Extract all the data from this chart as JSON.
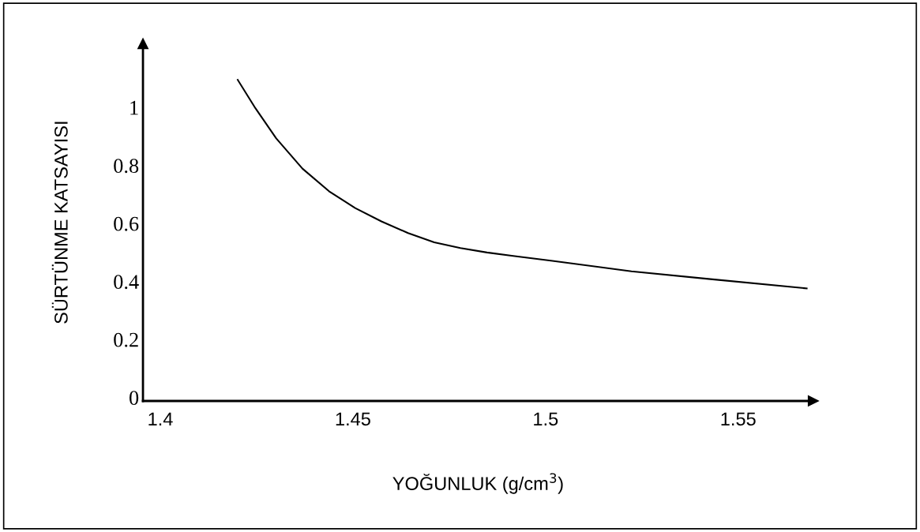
{
  "chart_data": {
    "type": "line",
    "xlabel": "YOĞUNLUK (g/cm$^{3}$)",
    "ylabel": "SÜRTÜNME KATSAYISI",
    "xlim": [
      1.3955,
      1.5695
    ],
    "ylim": [
      -0.012,
      1.22
    ],
    "xticks": [
      1.4,
      1.45,
      1.5,
      1.55
    ],
    "yticks": [
      0,
      0.2,
      0.4,
      0.6,
      0.8,
      1
    ],
    "series": [
      {
        "color": "#000000",
        "x": [
          1.4201,
          1.4247,
          1.4301,
          1.4369,
          1.4438,
          1.4506,
          1.4574,
          1.4643,
          1.4711,
          1.4779,
          1.4848,
          1.4916,
          1.5018,
          1.5223,
          1.5428,
          1.5678
        ],
        "values": [
          1.095,
          0.997,
          0.893,
          0.789,
          0.711,
          0.653,
          0.607,
          0.567,
          0.535,
          0.515,
          0.5,
          0.488,
          0.471,
          0.435,
          0.408,
          0.376
        ]
      }
    ]
  }
}
